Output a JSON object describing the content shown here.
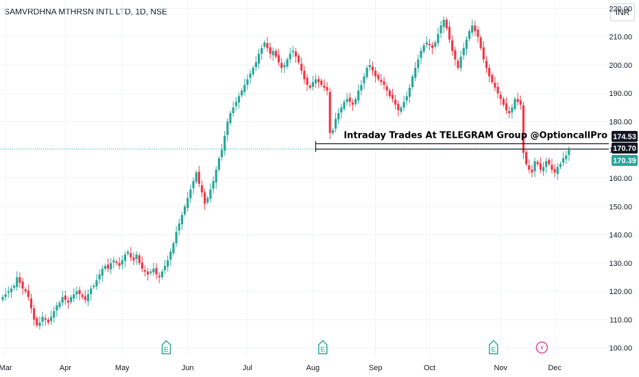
{
  "header": {
    "title": "SAMVRDHNA MTHRSN INTL LTD, 1D, NSE",
    "currency": "INR"
  },
  "colors": {
    "up": "#26a69a",
    "down": "#f23645",
    "grid": "#f0f3fa",
    "text": "#131722"
  },
  "chart_data": {
    "type": "candlestick",
    "ylim": [
      97,
      223
    ],
    "y_ticks": [
      "100.00",
      "110.00",
      "120.00",
      "130.00",
      "140.00",
      "150.00",
      "160.00",
      "170.00",
      "180.00",
      "190.00",
      "200.00",
      "210.00",
      "220.00"
    ],
    "x_ticks": [
      "Mar",
      "Apr",
      "May",
      "Jun",
      "Jul",
      "Aug",
      "Sep",
      "Oct",
      "Nov",
      "Dec"
    ],
    "annotation": "Intraday Trades At TELEGRAM Group @OptioncallPro",
    "price_labels": [
      {
        "value": 174.53,
        "text": "174.53",
        "style": "dark"
      },
      {
        "value": 170.7,
        "text": "170.70",
        "style": "dark"
      },
      {
        "value": 170.39,
        "text": "170.39",
        "style": "green"
      }
    ],
    "levels": [
      172.2,
      170.3
    ],
    "events": [
      {
        "day": 57,
        "kind": "earnings",
        "label": "E"
      },
      {
        "day": 112,
        "kind": "earnings",
        "label": "E"
      },
      {
        "day": 172,
        "kind": "earnings",
        "label": "E"
      },
      {
        "day": 189,
        "kind": "dividend",
        "label": "⚡"
      }
    ],
    "closes": [
      118,
      119,
      120,
      121,
      122,
      125,
      123,
      121,
      120,
      118,
      114,
      110,
      108,
      109,
      111,
      110,
      109,
      111,
      113,
      115,
      116,
      118,
      117,
      116,
      118,
      119,
      120,
      119,
      118,
      117,
      119,
      121,
      122,
      124,
      126,
      128,
      129,
      128,
      130,
      131,
      130,
      129,
      131,
      133,
      134,
      132,
      131,
      133,
      130,
      128,
      127,
      126,
      127,
      128,
      126,
      125,
      127,
      129,
      131,
      134,
      137,
      141,
      144,
      147,
      150,
      153,
      156,
      159,
      162,
      158,
      155,
      151,
      153,
      156,
      159,
      163,
      167,
      170,
      175,
      180,
      183,
      185,
      187,
      189,
      191,
      193,
      195,
      197,
      199,
      201,
      204,
      206,
      208,
      206,
      204,
      205,
      203,
      201,
      199,
      200,
      202,
      204,
      205,
      203,
      201,
      198,
      195,
      193,
      192,
      194,
      195,
      194,
      193,
      192,
      191,
      176,
      177,
      181,
      183,
      185,
      187,
      188,
      187,
      186,
      188,
      191,
      193,
      196,
      199,
      200,
      198,
      196,
      195,
      194,
      193,
      191,
      189,
      188,
      186,
      184,
      185,
      187,
      189,
      192,
      196,
      199,
      202,
      205,
      207,
      208,
      207,
      206,
      208,
      211,
      214,
      216,
      213,
      209,
      205,
      202,
      199,
      203,
      206,
      209,
      212,
      214,
      212,
      210,
      206,
      202,
      199,
      196,
      194,
      192,
      190,
      188,
      186,
      184,
      183,
      185,
      188,
      187,
      186,
      169,
      165,
      163,
      162,
      166,
      165,
      163,
      164,
      166,
      165,
      163,
      162,
      164,
      165,
      167,
      168,
      170
    ]
  }
}
